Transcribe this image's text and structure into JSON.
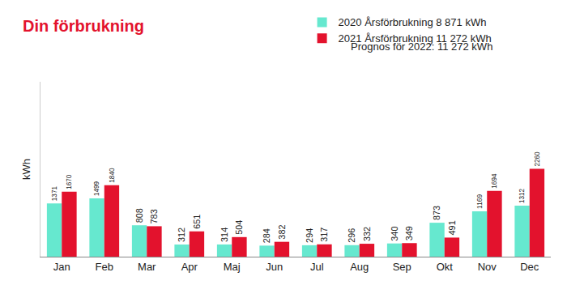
{
  "chart_data": {
    "type": "bar",
    "title": "Din förbrukning",
    "y_label": "kWh",
    "categories": [
      "Jan",
      "Feb",
      "Mar",
      "Apr",
      "Maj",
      "Jun",
      "Jul",
      "Aug",
      "Sep",
      "Okt",
      "Nov",
      "Dec"
    ],
    "series": [
      {
        "name": "2020 Årsförbrukning 8 871 kWh",
        "color": "#66e8cf",
        "values": [
          1371,
          1499,
          808,
          312,
          314,
          284,
          294,
          296,
          340,
          873,
          1169,
          1312
        ]
      },
      {
        "name": "2021 Årsförbrukning 11 272 kWh",
        "color": "#e3122d",
        "values": [
          1670,
          1840,
          783,
          651,
          504,
          382,
          317,
          332,
          349,
          491,
          1694,
          2260
        ]
      }
    ],
    "annotations": [
      "Prognos för 2022: 11 272 kWh"
    ],
    "ylim": [
      0,
      4500
    ],
    "yticks": [],
    "tick_labels": "x",
    "data_labels": true,
    "grid": false,
    "legend": "top right"
  }
}
